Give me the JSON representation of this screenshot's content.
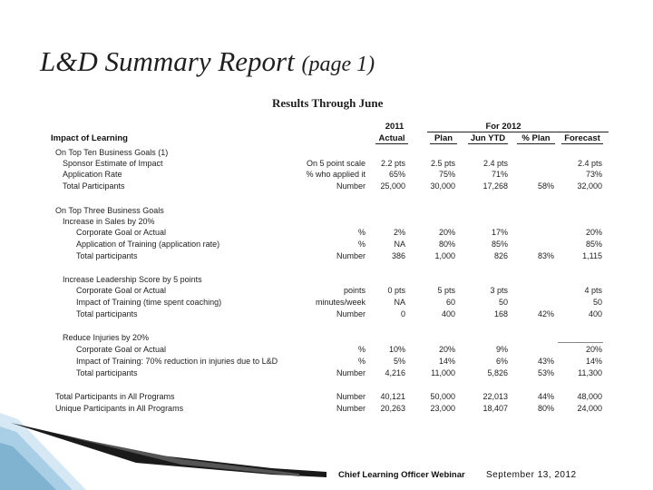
{
  "title": {
    "main": "L&D Summary Report",
    "sub": "(page 1)"
  },
  "subtitle": "Results Through June",
  "headers": {
    "group_2011": "2011",
    "group_2012": "For 2012",
    "impact": "Impact of Learning",
    "actual": "Actual",
    "plan": "Plan",
    "jun_ytd": "Jun YTD",
    "pct_plan": "% Plan",
    "forecast": "Forecast"
  },
  "rows": [
    {
      "label": "On Top Ten Business Goals (1)",
      "indent": 1
    },
    {
      "label": "Sponsor Estimate of Impact",
      "indent": 2,
      "unit": "On 5 point scale",
      "actual": "2.2 pts",
      "plan": "2.5 pts",
      "ytd": "2.4 pts",
      "pct": "",
      "forecast": "2.4 pts"
    },
    {
      "label": "Application Rate",
      "indent": 2,
      "unit": "% who applied it",
      "actual": "65%",
      "plan": "75%",
      "ytd": "71%",
      "pct": "",
      "forecast": "73%"
    },
    {
      "label": "Total Participants",
      "indent": 2,
      "unit": "Number",
      "actual": "25,000",
      "plan": "30,000",
      "ytd": "17,268",
      "pct": "58%",
      "forecast": "32,000"
    },
    {
      "label": "On Top Three Business Goals",
      "indent": 1
    },
    {
      "label": "Increase in Sales by 20%",
      "indent": 2
    },
    {
      "label": "Corporate Goal or Actual",
      "indent": 3,
      "unit": "%",
      "actual": "2%",
      "plan": "20%",
      "ytd": "17%",
      "pct": "",
      "forecast": "20%"
    },
    {
      "label": "Application of Training (application rate)",
      "indent": 3,
      "unit": "%",
      "actual": "NA",
      "plan": "80%",
      "ytd": "85%",
      "pct": "",
      "forecast": "85%"
    },
    {
      "label": "Total participants",
      "indent": 3,
      "unit": "Number",
      "actual": "386",
      "plan": "1,000",
      "ytd": "826",
      "pct": "83%",
      "forecast": "1,115"
    },
    {
      "label": "Increase Leadership Score by 5 points",
      "indent": 2
    },
    {
      "label": "Corporate Goal or Actual",
      "indent": 3,
      "unit": "points",
      "actual": "0 pts",
      "plan": "5 pts",
      "ytd": "3 pts",
      "pct": "",
      "forecast": "4 pts"
    },
    {
      "label": "Impact of Training (time spent coaching)",
      "indent": 3,
      "unit": "minutes/week",
      "actual": "NA",
      "plan": "60",
      "ytd": "50",
      "pct": "",
      "forecast": "50"
    },
    {
      "label": "Total participants",
      "indent": 3,
      "unit": "Number",
      "actual": "0",
      "plan": "400",
      "ytd": "168",
      "pct": "42%",
      "forecast": "400"
    },
    {
      "label": "Reduce Injuries by 20%",
      "indent": 2
    },
    {
      "label": "Corporate Goal or Actual",
      "indent": 3,
      "unit": "%",
      "actual": "10%",
      "plan": "20%",
      "ytd": "9%",
      "pct": "",
      "forecast": "20%"
    },
    {
      "label": "Impact of Training: 70% reduction in injuries due to L&D",
      "indent": 3,
      "unit": "%",
      "actual": "5%",
      "plan": "14%",
      "ytd": "6%",
      "pct": "43%",
      "forecast": "14%"
    },
    {
      "label": "Total participants",
      "indent": 3,
      "unit": "Number",
      "actual": "4,216",
      "plan": "11,000",
      "ytd": "5,826",
      "pct": "53%",
      "forecast": "11,300"
    },
    {
      "label": "Total Participants in All Programs",
      "indent": 1,
      "unit": "Number",
      "actual": "40,121",
      "plan": "50,000",
      "ytd": "22,013",
      "pct": "44%",
      "forecast": "48,000"
    },
    {
      "label": "Unique Participants in All Programs",
      "indent": 1,
      "unit": "Number",
      "actual": "20,263",
      "plan": "23,000",
      "ytd": "18,407",
      "pct": "80%",
      "forecast": "24,000"
    }
  ],
  "footer": {
    "left": "Chief Learning Officer Webinar",
    "right": "September 13, 2012"
  },
  "colors": {
    "accent_dark": "#1a1a1a",
    "accent_light": "#cfe3ef",
    "accent_mid": "#7fb3d0"
  }
}
